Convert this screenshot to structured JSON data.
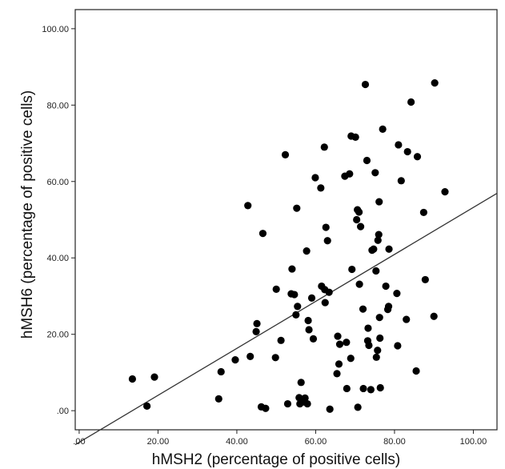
{
  "chart_data": {
    "type": "scatter",
    "title": "",
    "xlabel": "hMSH2 (percentage of positive cells)",
    "ylabel": "hMSH6 (percentage of positive cells)",
    "xlim": [
      -1,
      106
    ],
    "ylim": [
      -5,
      105
    ],
    "x_ticks": [
      {
        "value": 0,
        "label": ".00"
      },
      {
        "value": 20,
        "label": "20.00"
      },
      {
        "value": 40,
        "label": "40.00"
      },
      {
        "value": 60,
        "label": "60.00"
      },
      {
        "value": 80,
        "label": "80.00"
      },
      {
        "value": 100,
        "label": "100.00"
      }
    ],
    "y_ticks": [
      {
        "value": 0,
        "label": ".00"
      },
      {
        "value": 20,
        "label": "20.00"
      },
      {
        "value": 40,
        "label": "40.00"
      },
      {
        "value": 60,
        "label": "60.00"
      },
      {
        "value": 80,
        "label": "80.00"
      },
      {
        "value": 100,
        "label": "100.00"
      }
    ],
    "grid": false,
    "legend": "none",
    "point_color": "#000000",
    "fit_line": {
      "x1": -1,
      "y1": -8.9,
      "x2": 106,
      "y2": 56.9,
      "color": "#333333"
    },
    "points": [
      [
        13.5,
        8.3
      ],
      [
        17.2,
        1.2
      ],
      [
        19.1,
        8.8
      ],
      [
        35.4,
        3.1
      ],
      [
        36.0,
        10.2
      ],
      [
        39.6,
        13.3
      ],
      [
        42.8,
        53.7
      ],
      [
        43.4,
        14.2
      ],
      [
        44.9,
        20.7
      ],
      [
        45.1,
        22.8
      ],
      [
        46.6,
        46.4
      ],
      [
        46.2,
        1.0
      ],
      [
        47.3,
        0.6
      ],
      [
        49.8,
        13.9
      ],
      [
        50.0,
        31.8
      ],
      [
        51.2,
        18.4
      ],
      [
        52.3,
        67.0
      ],
      [
        52.9,
        1.8
      ],
      [
        53.8,
        30.6
      ],
      [
        54.0,
        37.1
      ],
      [
        54.6,
        30.4
      ],
      [
        55.0,
        25.1
      ],
      [
        55.2,
        53.0
      ],
      [
        55.4,
        27.3
      ],
      [
        55.8,
        3.4
      ],
      [
        56.0,
        1.8
      ],
      [
        56.3,
        7.4
      ],
      [
        57.0,
        2.3
      ],
      [
        57.3,
        3.3
      ],
      [
        57.7,
        41.8
      ],
      [
        57.9,
        1.8
      ],
      [
        58.1,
        23.6
      ],
      [
        58.3,
        21.2
      ],
      [
        59.0,
        29.5
      ],
      [
        59.4,
        18.8
      ],
      [
        59.9,
        61.0
      ],
      [
        61.3,
        58.3
      ],
      [
        61.5,
        32.6
      ],
      [
        62.2,
        69.0
      ],
      [
        62.3,
        31.7
      ],
      [
        62.4,
        28.3
      ],
      [
        62.6,
        48.0
      ],
      [
        63.0,
        44.5
      ],
      [
        63.4,
        31.0
      ],
      [
        63.6,
        0.4
      ],
      [
        65.4,
        9.7
      ],
      [
        65.6,
        19.5
      ],
      [
        65.9,
        12.2
      ],
      [
        66.1,
        17.4
      ],
      [
        67.4,
        61.4
      ],
      [
        67.8,
        17.9
      ],
      [
        67.9,
        5.8
      ],
      [
        68.6,
        62.0
      ],
      [
        68.9,
        13.7
      ],
      [
        69.0,
        71.9
      ],
      [
        69.2,
        37.0
      ],
      [
        70.1,
        71.6
      ],
      [
        70.4,
        50.0
      ],
      [
        70.6,
        52.6
      ],
      [
        70.7,
        0.9
      ],
      [
        71.0,
        52.0
      ],
      [
        71.1,
        33.1
      ],
      [
        71.4,
        48.2
      ],
      [
        72.0,
        26.6
      ],
      [
        72.1,
        5.8
      ],
      [
        72.6,
        85.4
      ],
      [
        73.0,
        65.5
      ],
      [
        73.2,
        18.3
      ],
      [
        73.3,
        21.6
      ],
      [
        73.5,
        17.1
      ],
      [
        74.0,
        5.5
      ],
      [
        74.3,
        42.0
      ],
      [
        74.7,
        42.3
      ],
      [
        75.1,
        62.3
      ],
      [
        75.3,
        36.6
      ],
      [
        75.4,
        14.0
      ],
      [
        75.7,
        15.8
      ],
      [
        75.8,
        44.6
      ],
      [
        76.0,
        46.1
      ],
      [
        76.1,
        54.7
      ],
      [
        76.2,
        24.4
      ],
      [
        76.3,
        19.0
      ],
      [
        76.4,
        6.0
      ],
      [
        77.0,
        73.7
      ],
      [
        77.8,
        32.6
      ],
      [
        78.3,
        26.5
      ],
      [
        78.5,
        27.3
      ],
      [
        78.6,
        42.3
      ],
      [
        80.6,
        30.7
      ],
      [
        80.8,
        17.0
      ],
      [
        81.0,
        69.6
      ],
      [
        81.7,
        60.2
      ],
      [
        83.0,
        23.9
      ],
      [
        83.3,
        67.8
      ],
      [
        84.2,
        80.8
      ],
      [
        85.5,
        10.4
      ],
      [
        85.8,
        66.5
      ],
      [
        87.4,
        51.9
      ],
      [
        87.8,
        34.3
      ],
      [
        90.0,
        24.7
      ],
      [
        90.2,
        85.8
      ],
      [
        92.8,
        57.3
      ]
    ]
  }
}
